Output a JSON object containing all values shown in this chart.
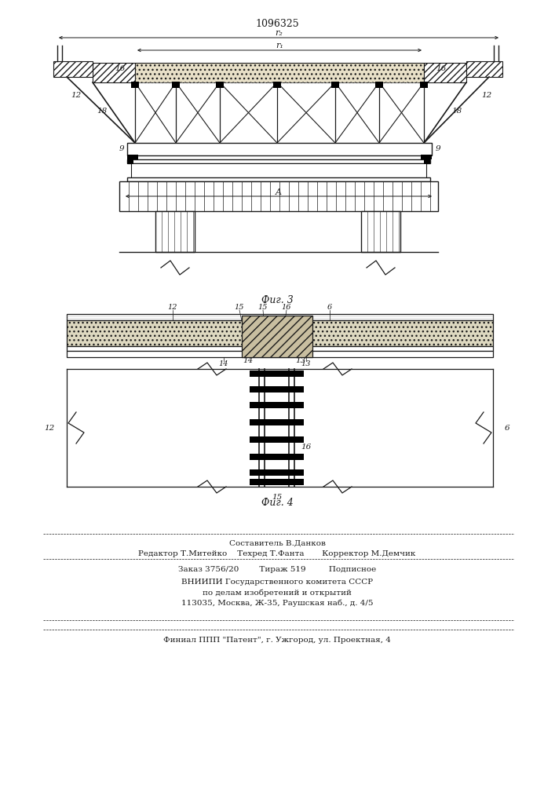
{
  "patent_number": "1096325",
  "fig1_caption": "Фиг. 3",
  "fig2_caption": "Фиг. 4",
  "line_color": "#1a1a1a",
  "footer_texts": [
    [
      353,
      308,
      "Составитель В.Данков",
      7.5
    ],
    [
      353,
      294,
      "Редактор Т.Митейко    Техред Т.Фанта       Корректор М.Демчик",
      7.5
    ],
    [
      353,
      274,
      "Заказ 3756/20        Тираж 519         Подписное",
      7.5
    ],
    [
      353,
      258,
      "ВНИИПИ Государственного комитета СССР",
      7.5
    ],
    [
      353,
      245,
      "по делам изобретений и открытий",
      7.5
    ],
    [
      353,
      232,
      "113035, Москва, Ж-35, Раушская наб., д. 4/5",
      7.5
    ],
    [
      353,
      185,
      "Финиал ППП \"Патент\", г. Ужгород, ул. Проектная, 4",
      7.5
    ]
  ]
}
